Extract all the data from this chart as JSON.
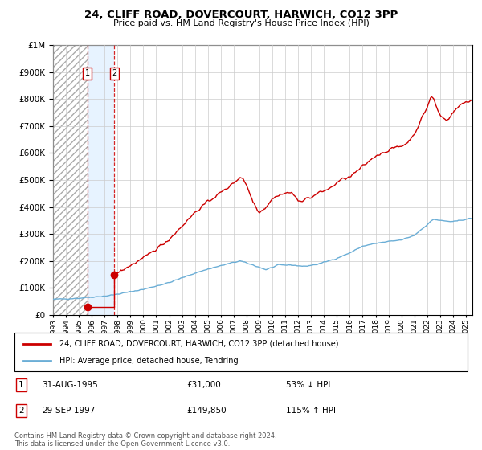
{
  "title": "24, CLIFF ROAD, DOVERCOURT, HARWICH, CO12 3PP",
  "subtitle": "Price paid vs. HM Land Registry's House Price Index (HPI)",
  "legend_line1": "24, CLIFF ROAD, DOVERCOURT, HARWICH, CO12 3PP (detached house)",
  "legend_line2": "HPI: Average price, detached house, Tendring",
  "footer": "Contains HM Land Registry data © Crown copyright and database right 2024.\nThis data is licensed under the Open Government Licence v3.0.",
  "purchase1_date": "31-AUG-1995",
  "purchase1_price": 31000,
  "purchase1_label": "53% ↓ HPI",
  "purchase1_year": 1995.667,
  "purchase2_date": "29-SEP-1997",
  "purchase2_price": 149850,
  "purchase2_label": "115% ↑ HPI",
  "purchase2_year": 1997.75,
  "ylim": [
    0,
    1000000
  ],
  "xlim_start": 1993.0,
  "xlim_end": 2025.5,
  "hpi_color": "#6baed6",
  "property_color": "#cc0000",
  "shade_color": "#ddeeff",
  "grid_color": "#cccccc",
  "background_color": "#ffffff"
}
